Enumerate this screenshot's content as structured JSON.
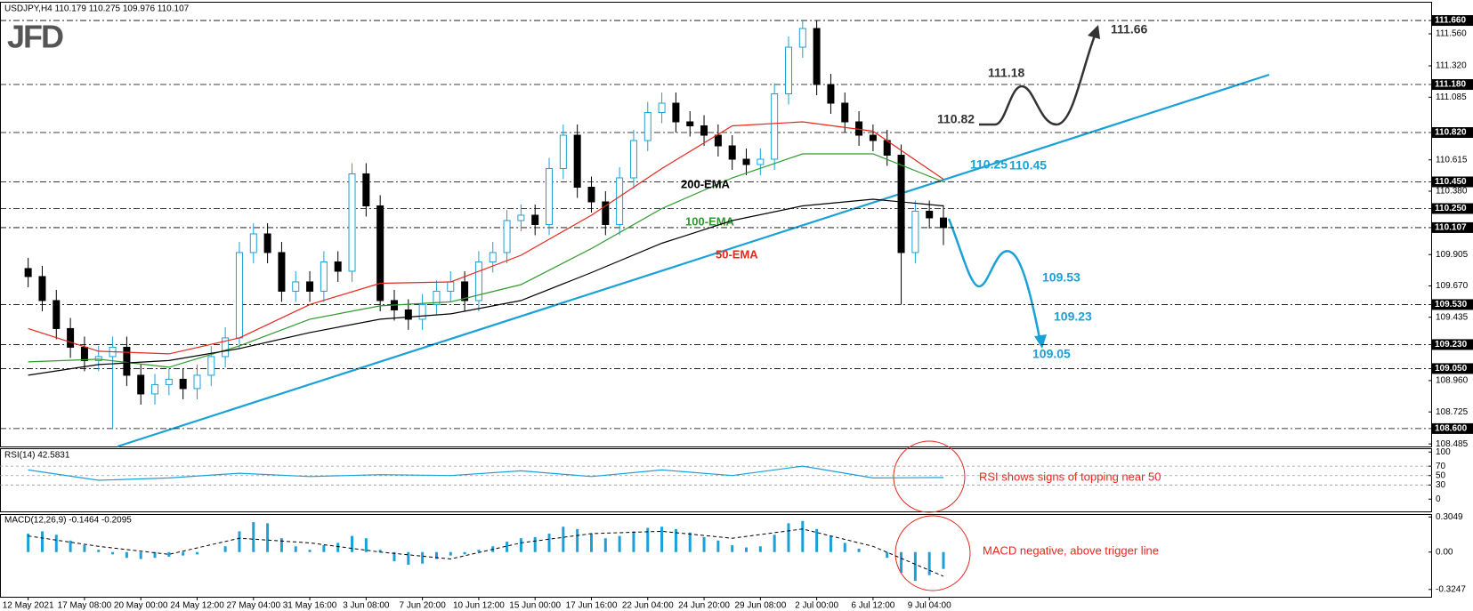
{
  "logo": "JFD",
  "chart_data": [
    {
      "type": "candlestick",
      "title": "USDJPY,H4  110.179 110.275 109.976 110.107",
      "xlim": [
        -2,
        99.7
      ],
      "xticks": [
        {
          "value": 0,
          "label": "12 May 2021"
        },
        {
          "value": 4,
          "label": "17 May 08:00"
        },
        {
          "value": 8,
          "label": "20 May 00:00"
        },
        {
          "value": 12,
          "label": "24 May 12:00"
        },
        {
          "value": 16,
          "label": "27 May 04:00"
        },
        {
          "value": 20,
          "label": "31 May 16:00"
        },
        {
          "value": 24,
          "label": "3 Jun 08:00"
        },
        {
          "value": 28,
          "label": "7 Jun 20:00"
        },
        {
          "value": 32,
          "label": "10 Jun 12:00"
        },
        {
          "value": 36,
          "label": "15 Jun 00:00"
        },
        {
          "value": 40,
          "label": "17 Jun 16:00"
        },
        {
          "value": 44,
          "label": "22 Jun 04:00"
        },
        {
          "value": 48,
          "label": "24 Jun 20:00"
        },
        {
          "value": 52,
          "label": "29 Jun 08:00"
        },
        {
          "value": 56,
          "label": "2 Jul 00:00"
        },
        {
          "value": 60,
          "label": "6 Jul 12:00"
        },
        {
          "value": 64,
          "label": "9 Jul 04:00"
        }
      ],
      "ylim": [
        108.466,
        111.787
      ],
      "yticks": [
        {
          "value": 111.56,
          "label": "111.560"
        },
        {
          "value": 111.32,
          "label": "111.320"
        },
        111.085,
        110.615,
        {
          "value": 110.38,
          "label": "110.380"
        },
        109.905,
        {
          "value": 109.67,
          "label": "109.670"
        },
        109.435,
        {
          "value": 108.96,
          "label": "108.960"
        },
        108.725,
        108.485
      ],
      "up_color": "#1ba1d8",
      "down_color": "#000000",
      "open": [
        109.8,
        109.74,
        109.56,
        109.35,
        109.21,
        109.11,
        109.14,
        109.21,
        109.0,
        108.86,
        108.93,
        108.97,
        108.9,
        109.0,
        109.14,
        109.28,
        109.92,
        110.06,
        109.92,
        109.63,
        109.7,
        109.63,
        109.85,
        109.78,
        110.51,
        110.27,
        109.56,
        109.49,
        109.42,
        109.53,
        109.63,
        109.7,
        109.56,
        109.85,
        109.92,
        110.16,
        110.2,
        110.13,
        110.55,
        110.8,
        110.41,
        110.3,
        110.13,
        110.48,
        110.76,
        110.97,
        111.04,
        110.9,
        110.87,
        110.8,
        110.72,
        110.62,
        110.58,
        110.62,
        111.11,
        111.46,
        111.6,
        111.18,
        111.04,
        110.9,
        110.8,
        110.76,
        110.65,
        109.92,
        110.23,
        110.179
      ],
      "high": [
        109.88,
        109.82,
        109.64,
        109.43,
        109.29,
        109.22,
        109.29,
        109.29,
        109.08,
        109.01,
        109.05,
        109.05,
        109.08,
        109.22,
        109.36,
        110.0,
        110.14,
        110.14,
        110.0,
        109.78,
        109.78,
        109.93,
        109.93,
        110.59,
        110.59,
        110.35,
        109.64,
        109.57,
        109.61,
        109.71,
        109.78,
        109.78,
        109.93,
        110.0,
        110.24,
        110.28,
        110.28,
        110.63,
        110.88,
        110.88,
        110.49,
        110.38,
        110.56,
        110.84,
        111.05,
        111.12,
        111.12,
        110.98,
        110.95,
        110.88,
        110.8,
        110.7,
        110.7,
        111.19,
        111.54,
        111.66,
        111.66,
        111.26,
        111.12,
        110.98,
        110.88,
        110.84,
        110.73,
        110.31,
        110.31,
        110.275
      ],
      "low": [
        109.66,
        109.48,
        109.27,
        109.13,
        109.03,
        109.03,
        108.6,
        108.92,
        108.78,
        108.78,
        108.85,
        108.82,
        108.82,
        108.92,
        109.06,
        109.2,
        109.84,
        109.84,
        109.55,
        109.55,
        109.55,
        109.55,
        109.7,
        109.7,
        110.19,
        109.48,
        109.41,
        109.34,
        109.34,
        109.45,
        109.55,
        109.48,
        109.48,
        109.77,
        109.84,
        110.08,
        110.05,
        110.05,
        110.47,
        110.33,
        110.22,
        110.05,
        110.05,
        110.4,
        110.68,
        110.89,
        110.82,
        110.79,
        110.72,
        110.64,
        110.54,
        110.5,
        110.5,
        110.54,
        111.03,
        111.38,
        111.1,
        110.96,
        110.82,
        110.72,
        110.68,
        110.57,
        109.53,
        109.84,
        110.1,
        109.976
      ],
      "close": [
        109.74,
        109.56,
        109.35,
        109.21,
        109.11,
        109.14,
        109.21,
        109.0,
        108.86,
        108.93,
        108.97,
        108.9,
        109.0,
        109.14,
        109.28,
        109.92,
        110.06,
        109.92,
        109.63,
        109.7,
        109.63,
        109.85,
        109.78,
        110.51,
        110.27,
        109.56,
        109.49,
        109.42,
        109.53,
        109.63,
        109.7,
        109.56,
        109.85,
        109.92,
        110.16,
        110.2,
        110.13,
        110.55,
        110.8,
        110.41,
        110.3,
        110.13,
        110.48,
        110.76,
        110.97,
        111.04,
        110.9,
        110.87,
        110.8,
        110.72,
        110.62,
        110.58,
        110.62,
        111.11,
        111.46,
        111.6,
        111.18,
        111.04,
        110.9,
        110.8,
        110.76,
        110.65,
        109.92,
        110.23,
        110.18,
        110.107
      ],
      "series": [
        {
          "name": "50-EMA",
          "color": "#e8261c",
          "x": [
            0,
            5,
            10,
            15,
            20,
            25,
            30,
            35,
            40,
            45,
            50,
            55,
            60,
            65
          ],
          "values": [
            109.35,
            109.18,
            109.16,
            109.28,
            109.53,
            109.69,
            109.7,
            109.9,
            110.2,
            110.55,
            110.87,
            110.9,
            110.83,
            110.47
          ]
        },
        {
          "name": "100-EMA",
          "color": "#2e9a2e",
          "x": [
            0,
            5,
            10,
            15,
            20,
            25,
            30,
            35,
            40,
            45,
            50,
            55,
            60,
            65
          ],
          "values": [
            109.1,
            109.12,
            109.06,
            109.22,
            109.42,
            109.52,
            109.55,
            109.68,
            109.95,
            110.25,
            110.48,
            110.66,
            110.66,
            110.45
          ]
        },
        {
          "name": "200-EMA",
          "color": "#000000",
          "x": [
            0,
            5,
            10,
            15,
            20,
            25,
            30,
            35,
            40,
            45,
            50,
            55,
            60,
            65
          ],
          "values": [
            109.0,
            109.08,
            109.11,
            109.2,
            109.32,
            109.42,
            109.46,
            109.56,
            109.77,
            109.99,
            110.16,
            110.27,
            110.32,
            110.27
          ]
        }
      ],
      "levels": [
        {
          "value": 111.66,
          "label": "111.660"
        },
        {
          "value": 111.18,
          "label": "111.180"
        },
        {
          "value": 110.82,
          "label": "110.820"
        },
        {
          "value": 110.45,
          "label": "110.450"
        },
        {
          "value": 110.25,
          "label": "110.250"
        },
        110.107,
        {
          "value": 109.53,
          "label": "109.530"
        },
        {
          "value": 109.23,
          "label": "109.230"
        },
        {
          "value": 109.05,
          "label": "109.050"
        },
        {
          "value": 108.6,
          "label": "108.600"
        }
      ],
      "annotations": [
        "111.66",
        "111.18",
        "110.82",
        "110.45",
        "110.25",
        "109.53",
        "109.23",
        "109.05"
      ]
    },
    {
      "type": "line",
      "title": "RSI(14) 42.5831",
      "color": "#1ba1d8",
      "x": [
        0,
        5,
        10,
        15,
        20,
        25,
        30,
        35,
        40,
        45,
        50,
        55,
        60,
        65
      ],
      "values": [
        62,
        40,
        45,
        55,
        48,
        52,
        50,
        60,
        48,
        62,
        50,
        70,
        45,
        46
      ],
      "ylim": [
        -26,
        108
      ],
      "yticks": [
        100,
        70,
        50,
        30,
        0
      ],
      "annotation": "RSI shows signs of topping near 50"
    },
    {
      "type": "bar",
      "title": "MACD(12,26,9) -0.1464 -0.2095",
      "color": "#1ba1d8",
      "values": [
        0.16,
        0.18,
        0.15,
        0.1,
        0.06,
        0.02,
        -0.02,
        -0.05,
        -0.06,
        -0.05,
        -0.04,
        -0.03,
        -0.02,
        0.0,
        0.05,
        0.18,
        0.26,
        0.25,
        0.12,
        0.05,
        0.02,
        0.06,
        0.08,
        0.14,
        0.12,
        0.02,
        -0.08,
        -0.11,
        -0.1,
        -0.06,
        -0.03,
        -0.02,
        0.02,
        0.05,
        0.09,
        0.12,
        0.13,
        0.16,
        0.22,
        0.2,
        0.16,
        0.12,
        0.14,
        0.18,
        0.21,
        0.22,
        0.2,
        0.17,
        0.13,
        0.1,
        0.06,
        0.04,
        0.05,
        0.15,
        0.25,
        0.27,
        0.2,
        0.14,
        0.08,
        0.03,
        0.0,
        -0.05,
        -0.18,
        -0.25,
        -0.2,
        -0.1464
      ],
      "series": [
        {
          "color": "#000000",
          "x": [
            0,
            5,
            10,
            15,
            20,
            25,
            30,
            35,
            40,
            45,
            50,
            55,
            60,
            65
          ],
          "values": [
            0.14,
            0.05,
            -0.02,
            0.12,
            0.08,
            0.0,
            -0.06,
            0.08,
            0.16,
            0.18,
            0.12,
            0.2,
            0.05,
            -0.2095
          ]
        }
      ],
      "ylim": [
        -0.388,
        0.33
      ],
      "yticks": [
        0.3049,
        {
          "value": 0,
          "label": "0.00"
        },
        -0.3247
      ],
      "annotation": "MACD negative, above trigger line"
    }
  ]
}
